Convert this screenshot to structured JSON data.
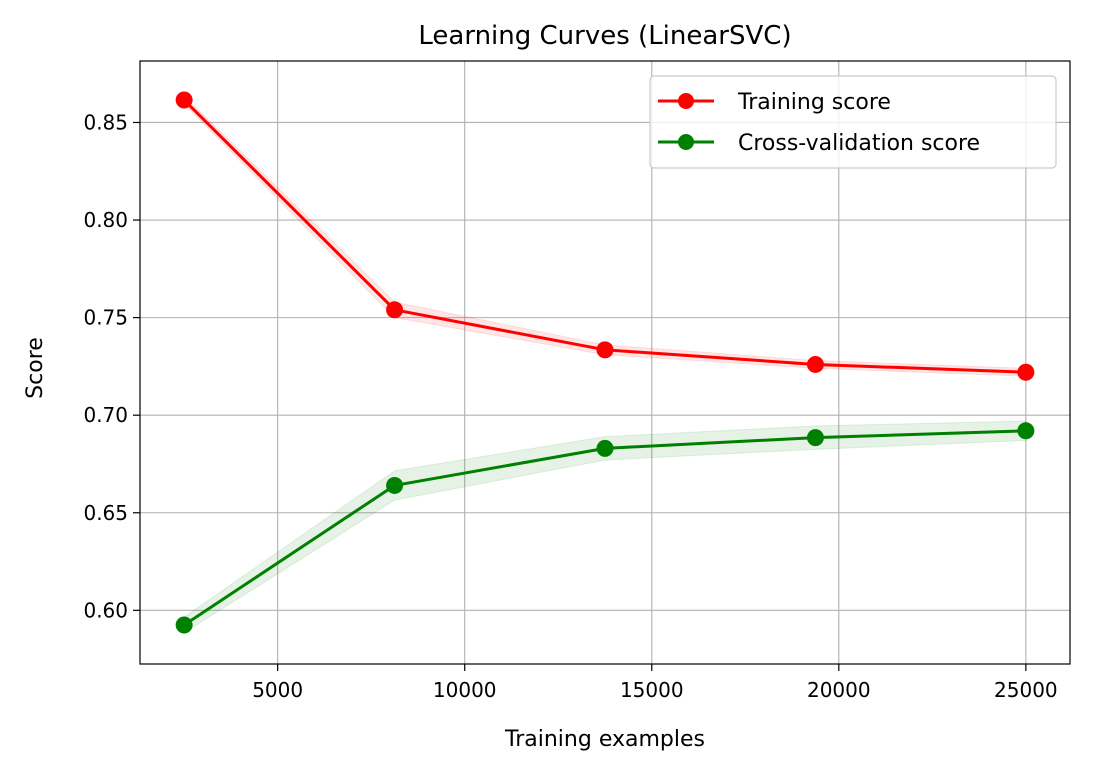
{
  "chart_data": {
    "type": "line",
    "title": "Learning Curves (LinearSVC)",
    "xlabel": "Training examples",
    "ylabel": "Score",
    "xlim": [
      1320,
      26180
    ],
    "ylim": [
      0.5725,
      0.8815
    ],
    "x_ticks": [
      5000,
      10000,
      15000,
      20000,
      25000
    ],
    "x_tick_labels": [
      "5000",
      "10000",
      "15000",
      "20000",
      "25000"
    ],
    "y_ticks": [
      0.6,
      0.65,
      0.7,
      0.75,
      0.8,
      0.85
    ],
    "y_tick_labels": [
      "0.60",
      "0.65",
      "0.70",
      "0.75",
      "0.80",
      "0.85"
    ],
    "grid": true,
    "legend_position": "upper right",
    "x": [
      2500,
      8125,
      13750,
      19375,
      25000
    ],
    "series": [
      {
        "name": "Training score",
        "color": "#ff0000",
        "fill_color": "#ff0000",
        "values": [
          0.8615,
          0.754,
          0.7335,
          0.726,
          0.722
        ],
        "band_upper": [
          0.8635,
          0.758,
          0.736,
          0.728,
          0.724
        ],
        "band_lower": [
          0.8595,
          0.75,
          0.731,
          0.724,
          0.72
        ]
      },
      {
        "name": "Cross-validation score",
        "color": "#008000",
        "fill_color": "#008000",
        "values": [
          0.5925,
          0.664,
          0.683,
          0.6885,
          0.692
        ],
        "band_upper": [
          0.5965,
          0.6715,
          0.689,
          0.6945,
          0.697
        ],
        "band_lower": [
          0.5885,
          0.6565,
          0.677,
          0.6825,
          0.687
        ]
      }
    ]
  }
}
